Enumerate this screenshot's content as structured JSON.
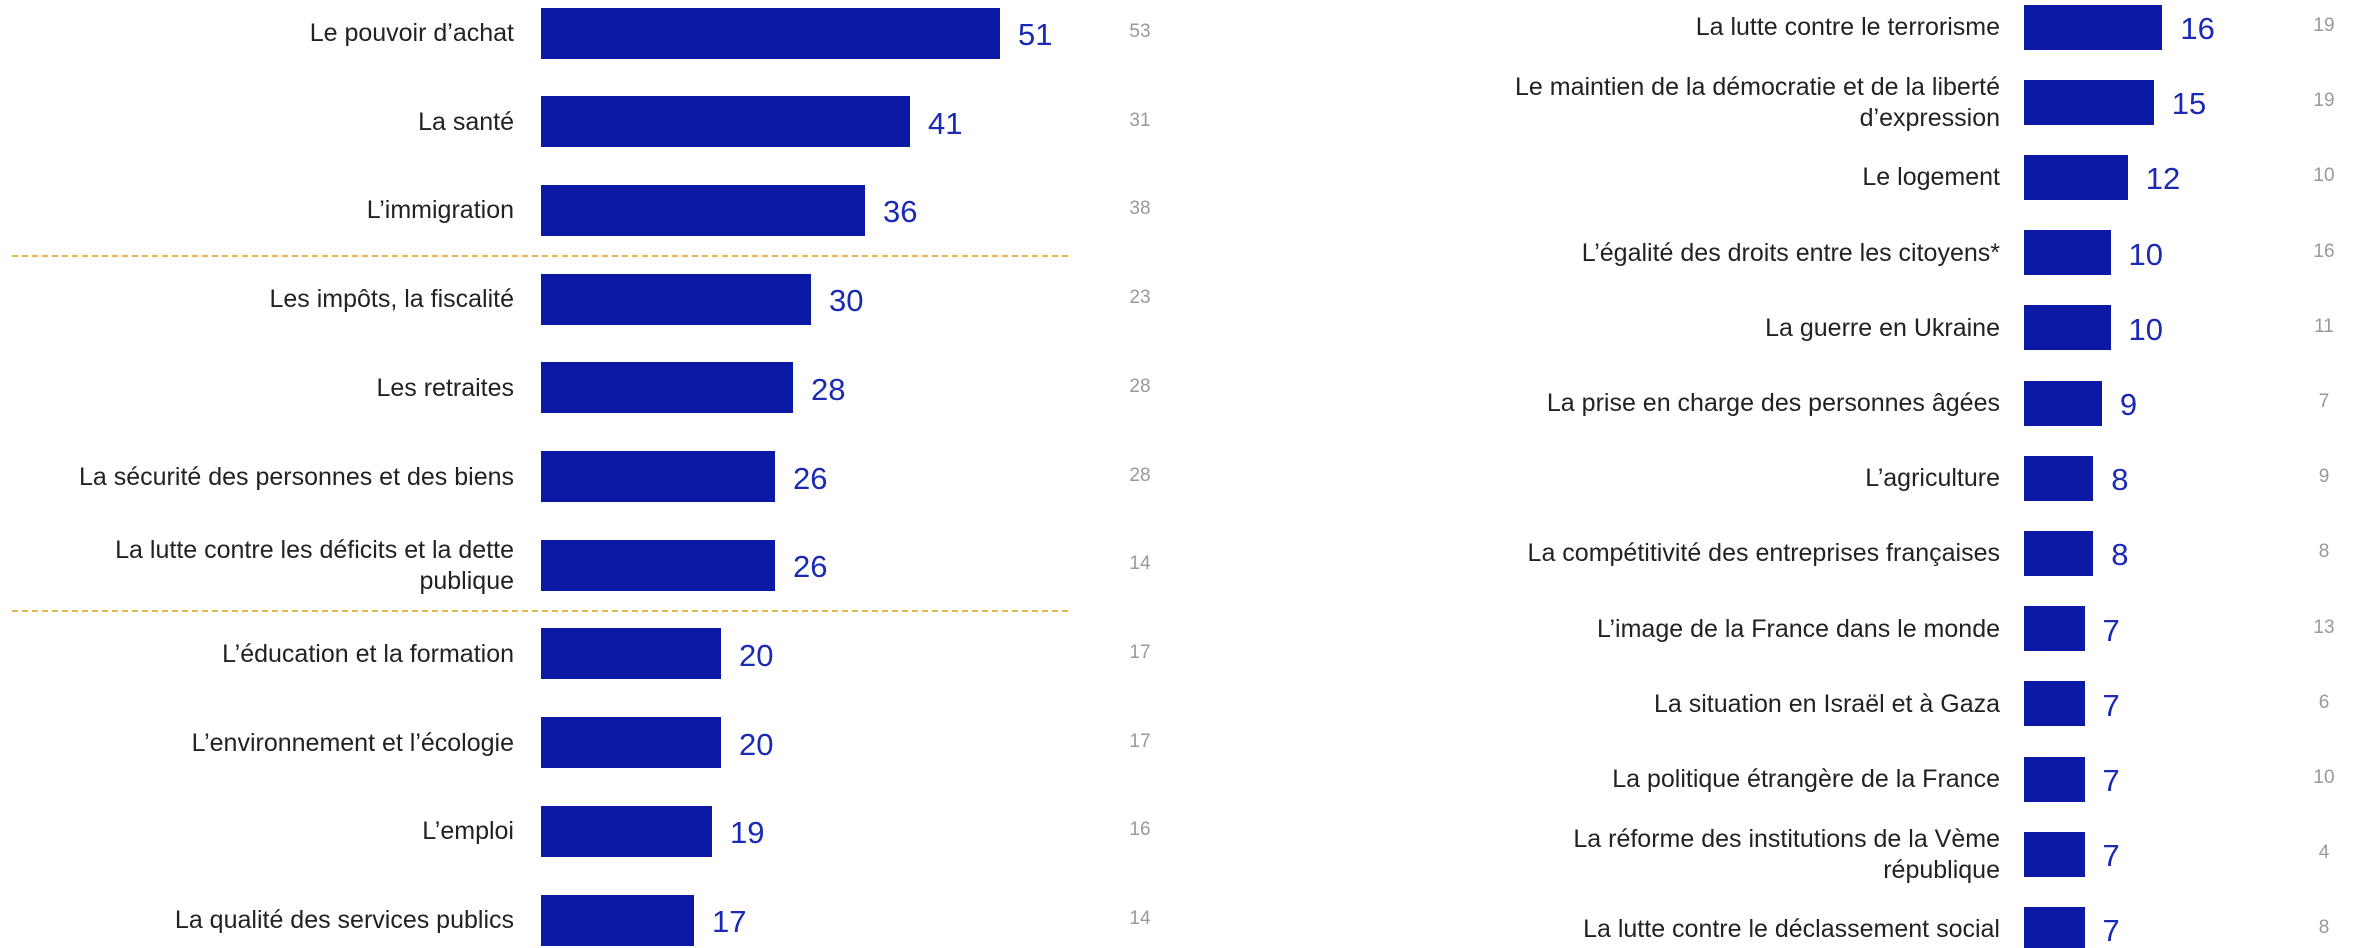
{
  "chart_data": [
    {
      "type": "bar",
      "orientation": "horizontal",
      "color": "#0a1aa5",
      "value_label_color": "#1a2ab5",
      "categories": [
        "Le pouvoir d’achat",
        "La santé",
        "L’immigration",
        "Les impôts, la fiscalité",
        "Les retraites",
        "La sécurité des personnes et des biens",
        "La lutte contre les déficits et la dette\npublique",
        "L’éducation et la formation",
        "L’environnement et l’écologie",
        "L’emploi",
        "La qualité des services publics"
      ],
      "values": [
        51,
        41,
        36,
        30,
        28,
        26,
        26,
        20,
        20,
        19,
        17
      ],
      "previous_values": [
        53,
        31,
        38,
        23,
        28,
        28,
        14,
        17,
        17,
        16,
        14
      ],
      "group_breaks": [
        3,
        7
      ]
    },
    {
      "type": "bar",
      "orientation": "horizontal",
      "color": "#0a1aa5",
      "value_label_color": "#1a2ab5",
      "categories": [
        "La lutte contre le terrorisme",
        "Le maintien de la démocratie et de la liberté\nd’expression",
        "Le logement",
        "L’égalité des droits entre les citoyens*",
        "La guerre en Ukraine",
        "La prise en charge des personnes âgées",
        "L’agriculture",
        "La compétitivité des entreprises françaises",
        "L’image de la France dans le monde",
        "La situation en Israël et à Gaza",
        "La politique étrangère de la France",
        "La réforme des institutions de la Vème\nrépublique",
        "La lutte contre le déclassement social"
      ],
      "values": [
        16,
        15,
        12,
        10,
        10,
        9,
        8,
        8,
        7,
        7,
        7,
        7,
        7
      ],
      "previous_values": [
        19,
        19,
        10,
        16,
        11,
        7,
        9,
        8,
        13,
        6,
        10,
        4,
        8
      ],
      "group_breaks": []
    }
  ]
}
